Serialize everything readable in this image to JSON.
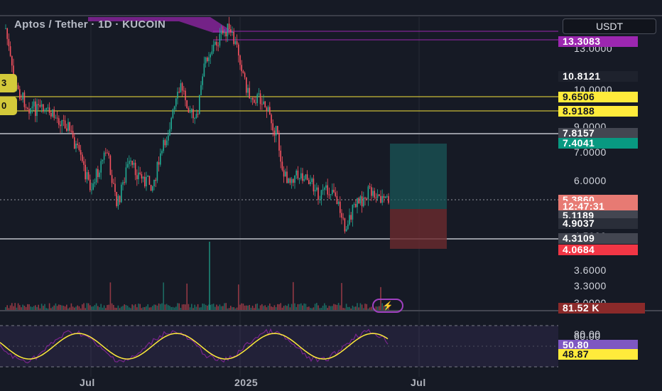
{
  "header": {
    "title": "Aptos / Tether · 1D · KUCOIN",
    "currency": "USDT"
  },
  "left_badges": [
    "3",
    "0"
  ],
  "price_axis": {
    "ticks": [
      "13.0000",
      "10.0000",
      "9.0000",
      "7.0000",
      "6.0000",
      "4.5000",
      "3.6000",
      "3.3000",
      "3.0000"
    ],
    "tags": [
      {
        "value": "13.3083",
        "bg": "#9c27b0",
        "fg": "#ffffff"
      },
      {
        "value": "10.8121",
        "bg": "#1e222d",
        "fg": "#ffffff"
      },
      {
        "value": "9.6506",
        "bg": "#ffeb3b",
        "fg": "#131722"
      },
      {
        "value": "8.9188",
        "bg": "#ffeb3b",
        "fg": "#131722"
      },
      {
        "value": "7.8157",
        "bg": "#434651",
        "fg": "#ffffff"
      },
      {
        "value": "7.4041",
        "bg": "#089981",
        "fg": "#ffffff"
      },
      {
        "value": "5.3860",
        "bg": "#e77a73",
        "fg": "#ffffff"
      },
      {
        "value": "12:47:31",
        "bg": "#e77a73",
        "fg": "#ffffff"
      },
      {
        "value": "5.1189",
        "bg": "#434651",
        "fg": "#ffffff"
      },
      {
        "value": "4.9037",
        "bg": "#2a2e39",
        "fg": "#ffffff"
      },
      {
        "value": "4.3109",
        "bg": "#434651",
        "fg": "#ffffff"
      },
      {
        "value": "4.0684",
        "bg": "#f23645",
        "fg": "#ffffff"
      },
      {
        "value": "81.52 K",
        "bg": "#8b2a2a",
        "fg": "#ffffff"
      }
    ]
  },
  "rsi_axis": {
    "ticks": [
      "80.00",
      "60.00"
    ],
    "tags": [
      {
        "value": "50.80",
        "bg": "#7e57c2",
        "fg": "#ffffff"
      },
      {
        "value": "48.87",
        "bg": "#ffeb3b",
        "fg": "#131722"
      }
    ]
  },
  "time_axis": {
    "labels": [
      "Jul",
      "2025",
      "Jul"
    ]
  },
  "colors": {
    "up": "#22ab94",
    "down": "#f7525f",
    "hline_yellow": "#f5e33b",
    "hline_gray": "#9598a1",
    "rsi": "#ffeb3b",
    "rsi_band": "#7e57c2"
  }
}
